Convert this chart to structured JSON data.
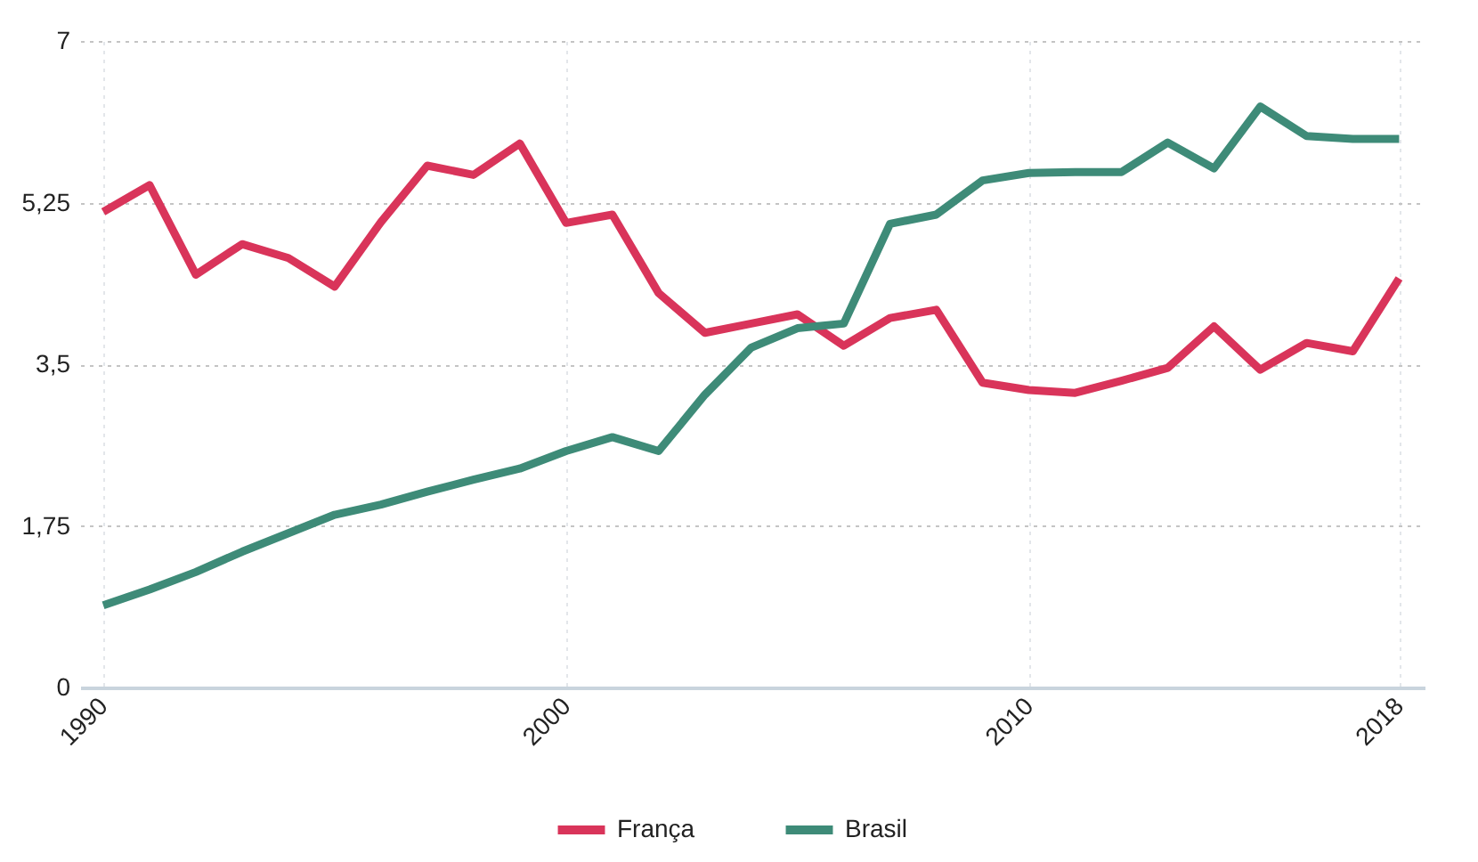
{
  "chart_data": {
    "type": "line",
    "x": [
      1990,
      1991,
      1992,
      1993,
      1994,
      1995,
      1996,
      1997,
      1998,
      1999,
      2000,
      2001,
      2002,
      2003,
      2004,
      2005,
      2006,
      2007,
      2008,
      2009,
      2010,
      2011,
      2012,
      2013,
      2014,
      2015,
      2016,
      2017,
      2018
    ],
    "series": [
      {
        "name": "França",
        "color": "#d9345a",
        "values": [
          5.15,
          5.44,
          4.47,
          4.8,
          4.65,
          4.34,
          5.04,
          5.65,
          5.55,
          5.89,
          5.03,
          5.12,
          4.27,
          3.84,
          3.94,
          4.04,
          3.7,
          4.0,
          4.09,
          3.3,
          3.22,
          3.19,
          3.32,
          3.46,
          3.91,
          3.44,
          3.73,
          3.64,
          4.43
        ]
      },
      {
        "name": "Brasil",
        "color": "#3e8b78",
        "values": [
          0.89,
          1.06,
          1.25,
          1.47,
          1.67,
          1.87,
          1.98,
          2.12,
          2.25,
          2.37,
          2.56,
          2.71,
          2.56,
          3.17,
          3.68,
          3.89,
          3.94,
          5.02,
          5.12,
          5.49,
          5.57,
          5.58,
          5.58,
          5.9,
          5.62,
          6.29,
          5.97,
          5.94,
          5.94
        ]
      }
    ],
    "xlim": [
      1989.5,
      2018.55
    ],
    "xticks": [
      1990,
      2000,
      2010,
      2018
    ],
    "ylim": [
      0,
      7
    ],
    "yticks": [
      0,
      {
        "value": 1.75,
        "label": "1,75"
      },
      {
        "value": 3.5,
        "label": "3,5"
      },
      {
        "value": 5.25,
        "label": "5,25"
      },
      7
    ],
    "grid": true,
    "legend": "bottom",
    "line_style": "solid"
  }
}
